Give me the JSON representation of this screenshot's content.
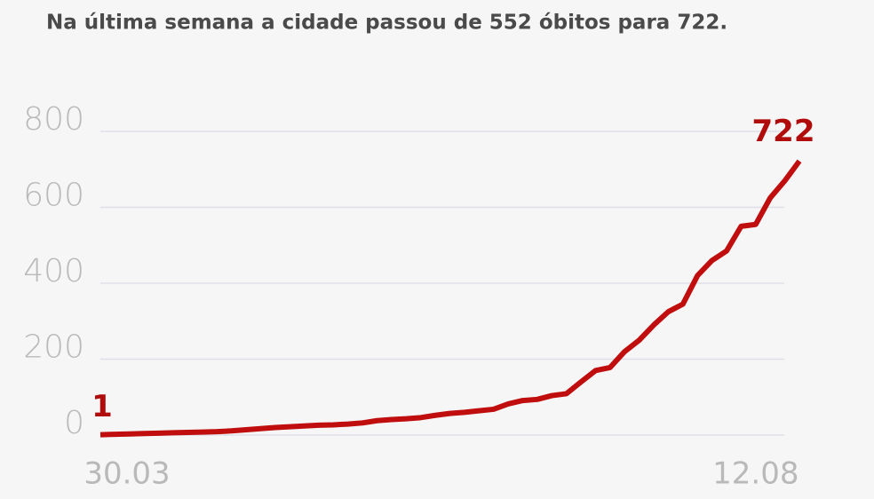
{
  "chart_data": {
    "type": "line",
    "title": "Na última semana a cidade passou de 552 óbitos para 722.",
    "categories": [
      "30.03",
      null,
      null,
      null,
      null,
      null,
      null,
      null,
      null,
      null,
      null,
      null,
      null,
      null,
      null,
      null,
      null,
      null,
      null,
      null,
      null,
      null,
      null,
      null,
      null,
      null,
      null,
      null,
      null,
      null,
      null,
      null,
      null,
      null,
      null,
      null,
      null,
      null,
      null,
      null,
      null,
      null,
      null,
      null,
      null,
      "12.08",
      null,
      null,
      null
    ],
    "series": [
      {
        "name": null,
        "color": "#c00d0d",
        "values": [
          1,
          2,
          3,
          4,
          5,
          6,
          7,
          8,
          9,
          11,
          14,
          17,
          20,
          22,
          24,
          26,
          27,
          29,
          32,
          38,
          41,
          43,
          46,
          52,
          57,
          60,
          64,
          68,
          82,
          91,
          94,
          104,
          109,
          140,
          170,
          178,
          220,
          250,
          290,
          325,
          345,
          420,
          460,
          485,
          550,
          555,
          625,
          670,
          722
        ]
      }
    ],
    "ylim": [
      0,
      800
    ],
    "yticks": [
      0,
      200,
      400,
      600,
      800
    ],
    "grid": true,
    "labeled_points": [
      0,
      48
    ]
  }
}
